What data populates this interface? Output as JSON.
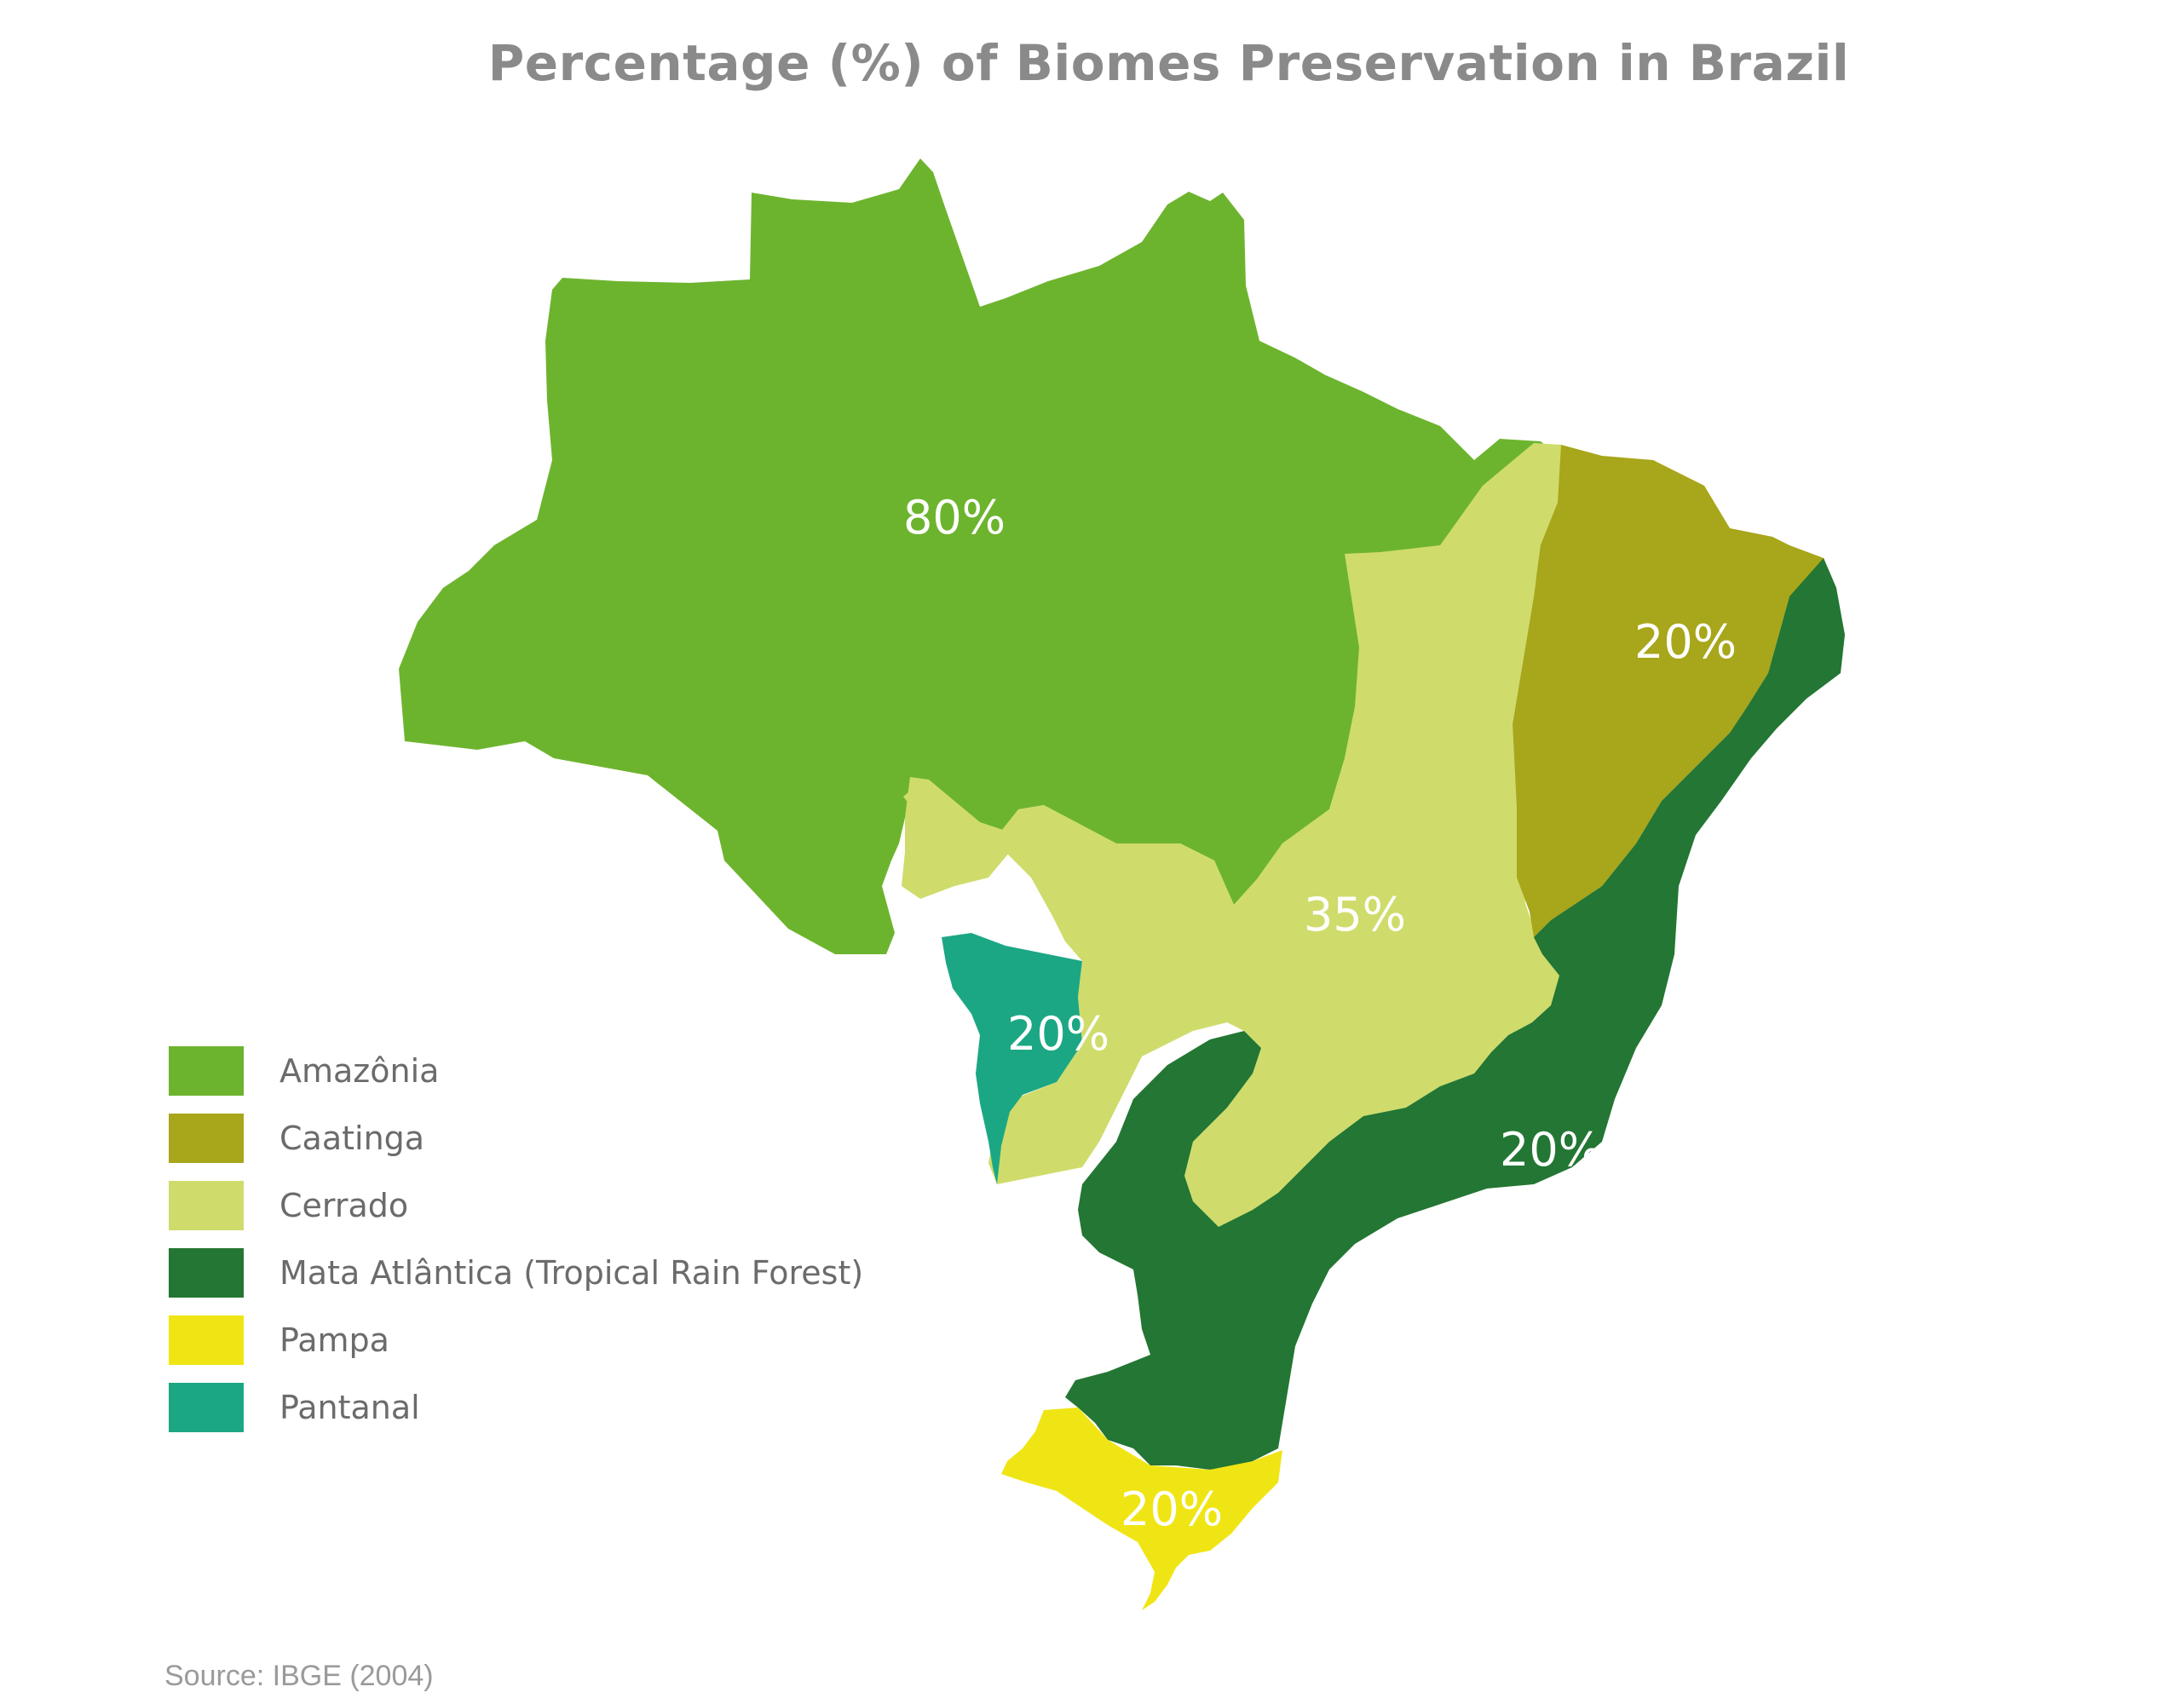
{
  "title": "Percentage (%) of Biomes Preservation in Brazil",
  "source": "Source: IBGE (2004)",
  "colors": {
    "amazonia": "#6db42e",
    "caatinga": "#a8a61a",
    "cerrado": "#cfdc6b",
    "mata_atlantica": "#237633",
    "pampa": "#f0e514",
    "pantanal": "#1ca784"
  },
  "regions": {
    "amazonia": {
      "label": "80%"
    },
    "caatinga": {
      "label": "20%"
    },
    "cerrado": {
      "label": "35%"
    },
    "pantanal": {
      "label": "20%"
    },
    "mata_atlantica": {
      "label": "20%"
    },
    "pampa": {
      "label": "20%"
    }
  },
  "legend": [
    {
      "key": "amazonia",
      "label": "Amazônia"
    },
    {
      "key": "caatinga",
      "label": "Caatinga"
    },
    {
      "key": "cerrado",
      "label": "Cerrado"
    },
    {
      "key": "mata_atlantica",
      "label": "Mata Atlântica (Tropical Rain Forest)"
    },
    {
      "key": "pampa",
      "label": "Pampa"
    },
    {
      "key": "pantanal",
      "label": "Pantanal"
    }
  ]
}
